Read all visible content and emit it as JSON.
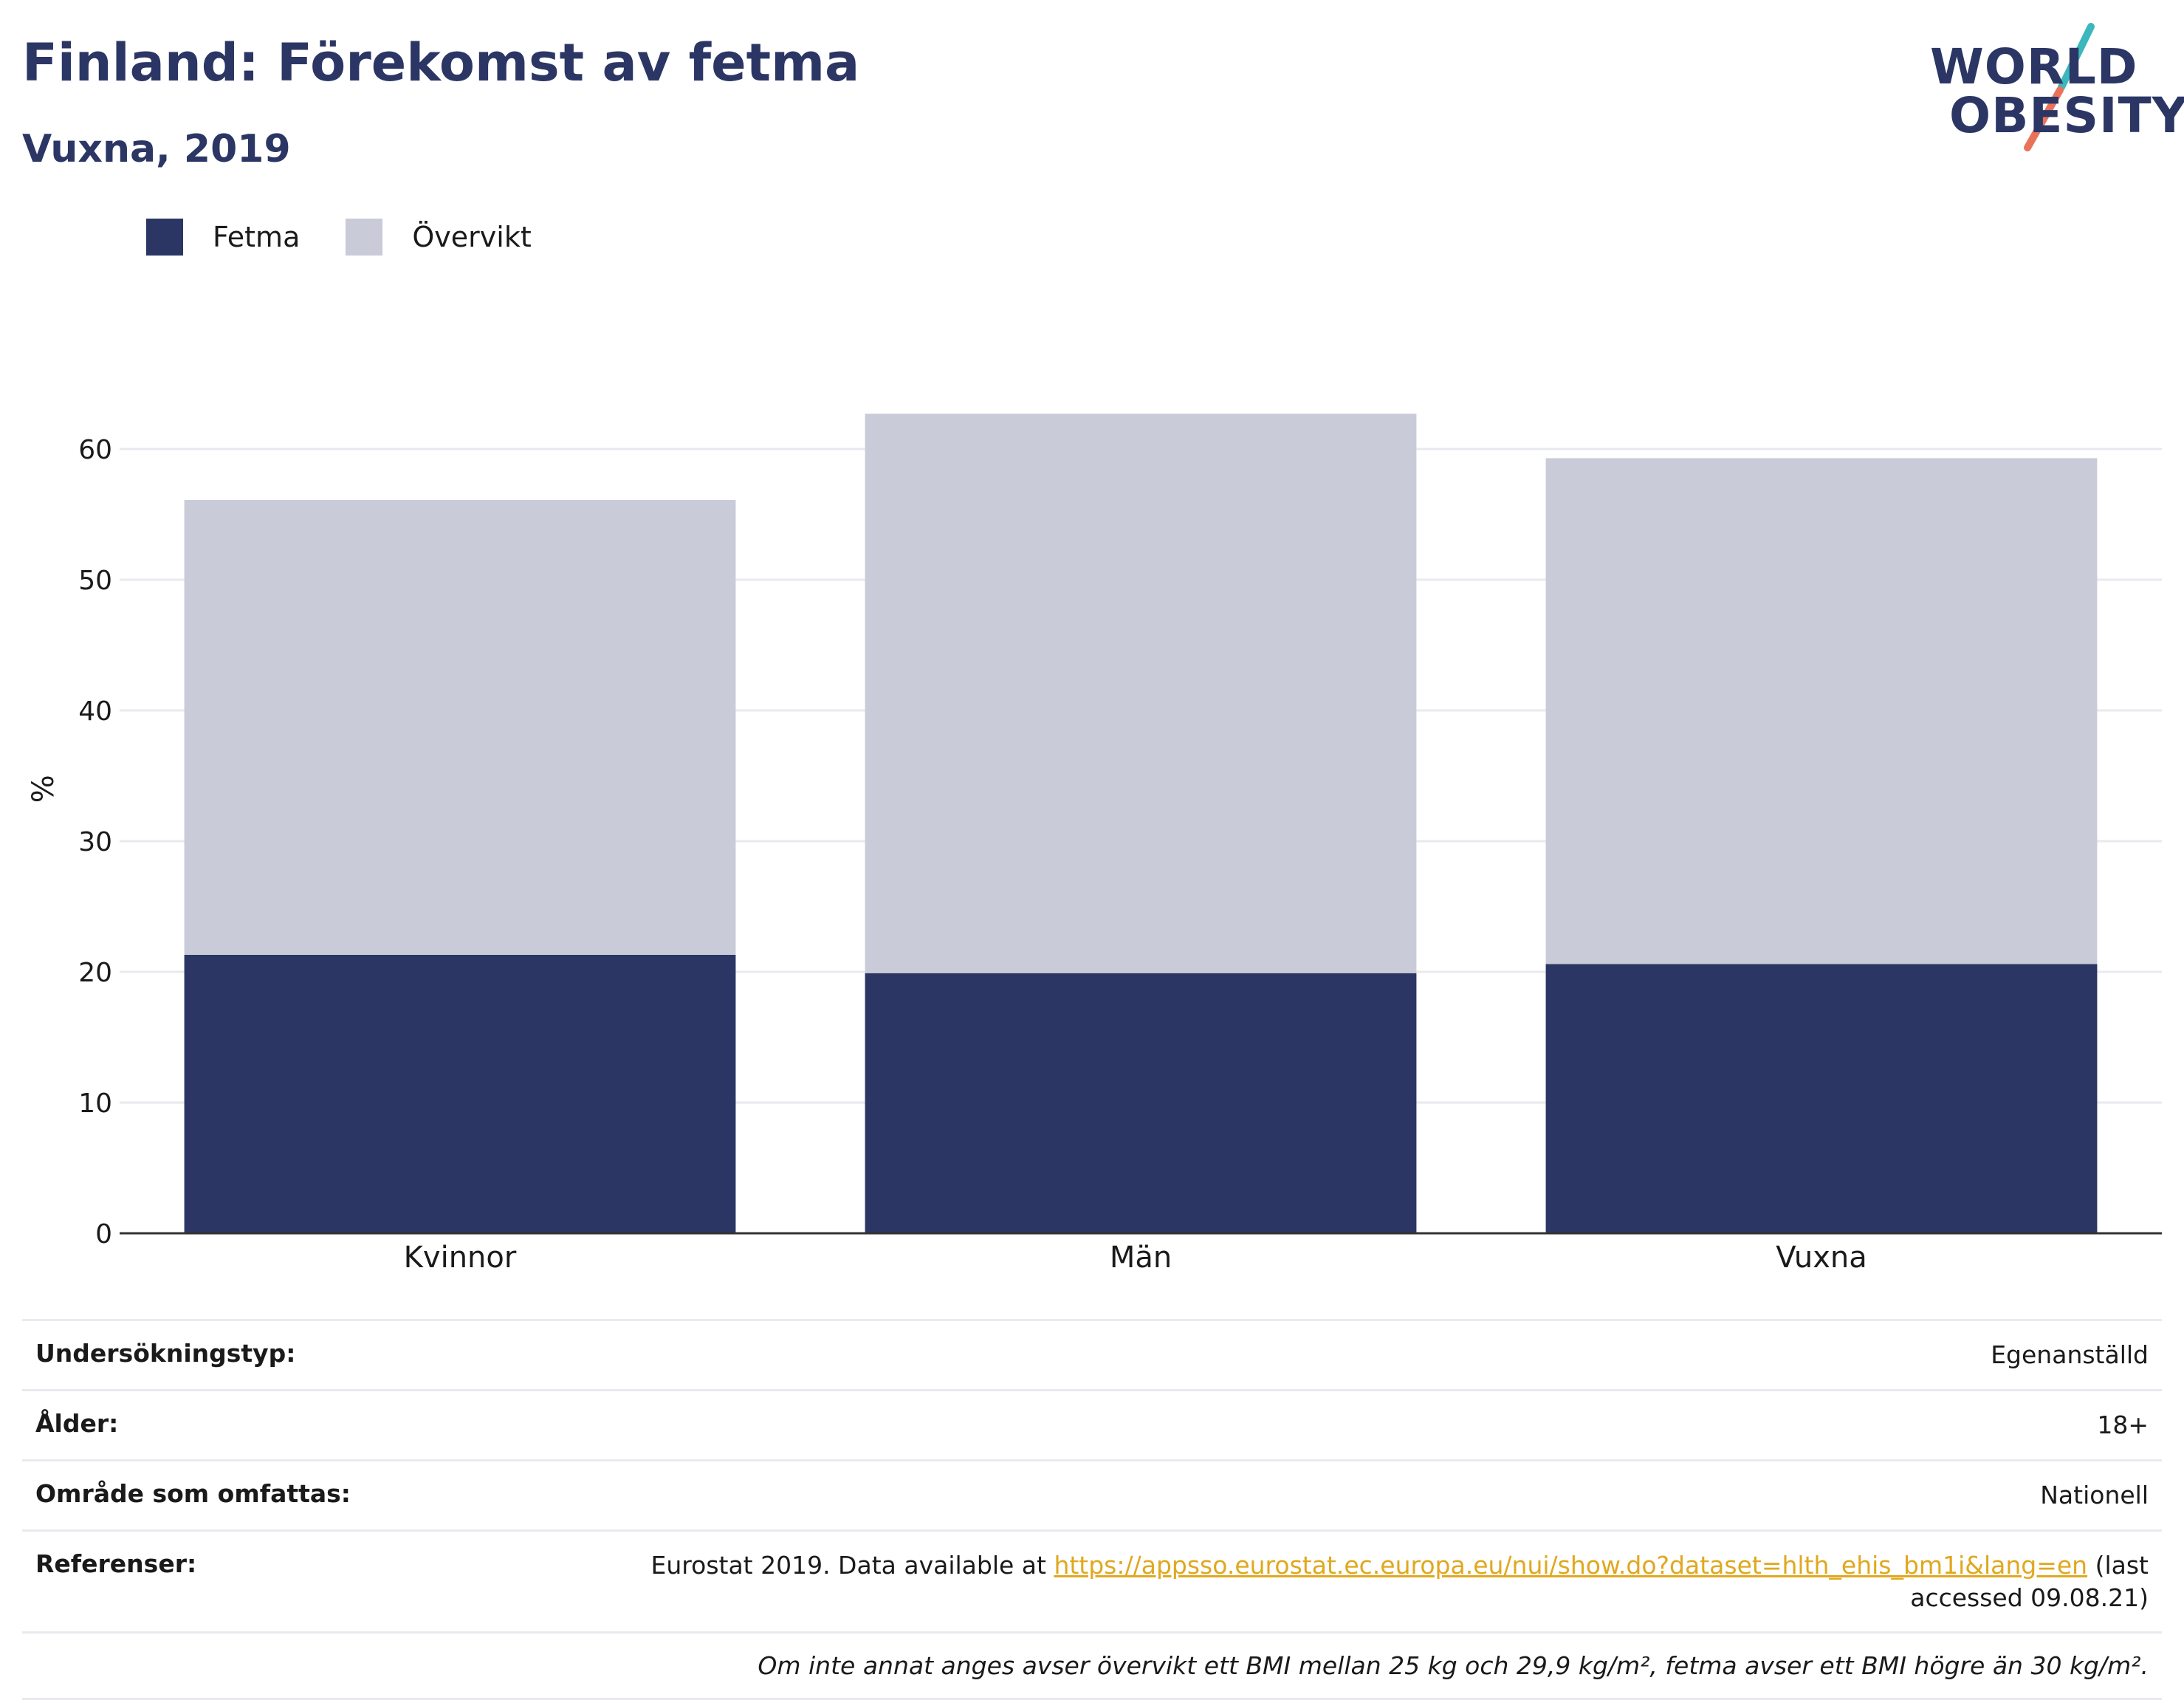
{
  "header": {
    "title": "Finland: Förekomst av fetma",
    "subtitle": "Vuxna, 2019"
  },
  "logo": {
    "line1": "WORLD",
    "line2": "OBESITY",
    "colors": {
      "text": "#2b3664",
      "slash_top": "#3bb7bd",
      "slash_bottom": "#e8735a"
    }
  },
  "colors": {
    "fetma": "#2b3664",
    "overvikt": "#c9ccd8",
    "link": "#e0a81e"
  },
  "chart_data": {
    "type": "bar",
    "stacked": true,
    "categories": [
      "Kvinnor",
      "Män",
      "Vuxna"
    ],
    "series": [
      {
        "name": "Fetma",
        "values": [
          21.3,
          19.9,
          20.6
        ]
      },
      {
        "name": "Övervikt",
        "values": [
          34.8,
          42.8,
          38.7
        ]
      }
    ],
    "totals": [
      56.1,
      62.7,
      59.3
    ],
    "ylabel": "%",
    "xlabel": "",
    "ylim": [
      0,
      67
    ],
    "yticks": [
      0,
      10,
      20,
      30,
      40,
      50,
      60
    ],
    "grid": true,
    "legend_position": "top-left"
  },
  "info": {
    "rows": [
      {
        "label": "Undersökningstyp:",
        "value": "Egenanställd"
      },
      {
        "label": "Ålder:",
        "value": "18+"
      },
      {
        "label": "Område som omfattas:",
        "value": "Nationell"
      }
    ],
    "reference": {
      "label": "Referenser:",
      "prefix": "Eurostat 2019. Data available at ",
      "link": "https://appsso.eurostat.ec.europa.eu/nui/show.do?dataset=hlth_ehis_bm1i&lang=en",
      "suffix": " (last accessed 09.08.21)"
    },
    "note": "Om inte annat anges avser övervikt ett BMI mellan 25 kg och 29,9 kg/m², fetma avser ett BMI högre än 30 kg/m²."
  }
}
